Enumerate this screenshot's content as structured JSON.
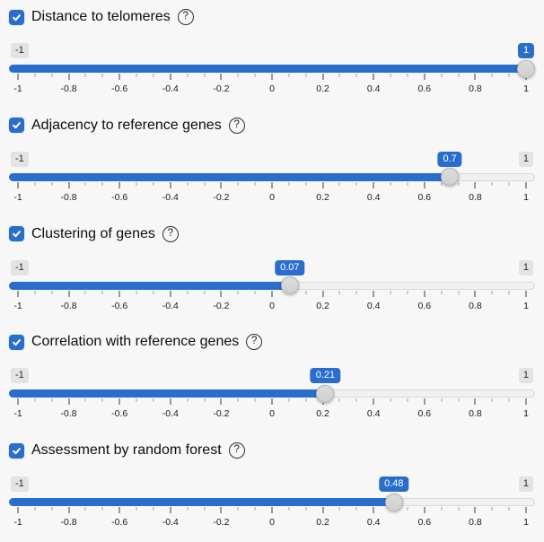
{
  "page": {
    "background": "#f7f7f7"
  },
  "colors": {
    "accent": "#2a6ecd",
    "badge_bg": "#e3e3e3",
    "badge_text": "#2b2b2b",
    "track_bg": "#f1f1f1",
    "track_border": "#d9d9d9"
  },
  "icons": {
    "help_glyph": "?",
    "check_icon": "checkmark"
  },
  "grid": {
    "major_labels": [
      "-1",
      "-0.8",
      "-0.6",
      "-0.4",
      "-0.2",
      "0",
      "0.2",
      "0.4",
      "0.6",
      "0.8",
      "1"
    ],
    "minor_ticks_per_interval": 2
  },
  "sliders": [
    {
      "label": "Distance to telomeres",
      "checked": true,
      "min": -1,
      "max": 1,
      "value": 1,
      "value_label": "1",
      "min_label": "-1",
      "max_label": "1",
      "show_max_badge": false
    },
    {
      "label": "Adjacency to reference genes",
      "checked": true,
      "min": -1,
      "max": 1,
      "value": 0.7,
      "value_label": "0.7",
      "min_label": "-1",
      "max_label": "1",
      "show_max_badge": true
    },
    {
      "label": "Clustering of genes",
      "checked": true,
      "min": -1,
      "max": 1,
      "value": 0.07,
      "value_label": "0.07",
      "min_label": "-1",
      "max_label": "1",
      "show_max_badge": true
    },
    {
      "label": "Correlation with reference genes",
      "checked": true,
      "min": -1,
      "max": 1,
      "value": 0.21,
      "value_label": "0.21",
      "min_label": "-1",
      "max_label": "1",
      "show_max_badge": true
    },
    {
      "label": "Assessment by random forest",
      "checked": true,
      "min": -1,
      "max": 1,
      "value": 0.48,
      "value_label": "0.48",
      "min_label": "-1",
      "max_label": "1",
      "show_max_badge": true
    }
  ]
}
